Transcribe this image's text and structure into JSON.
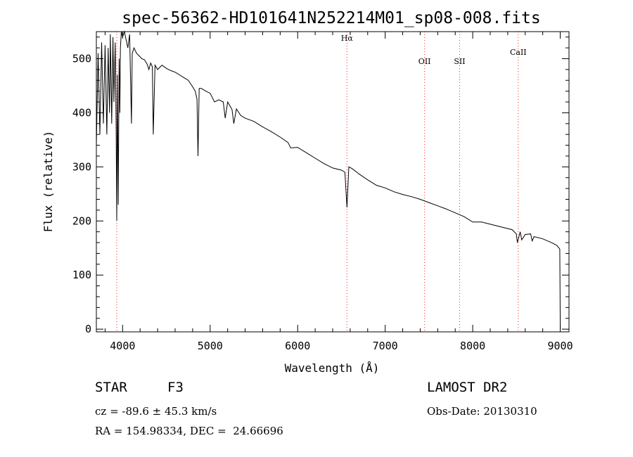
{
  "chart_data": {
    "type": "line",
    "title": "spec-56362-HD101641N252214M01_sp08-008.fits",
    "xlabel": "Wavelength (Å)",
    "ylabel": "Flux (relative)",
    "xlim": [
      3700,
      9100
    ],
    "ylim": [
      -5,
      550
    ],
    "xticks": [
      4000,
      5000,
      6000,
      7000,
      8000,
      9000
    ],
    "yticks": [
      0,
      100,
      200,
      300,
      400,
      500
    ],
    "grid": false,
    "series": [
      {
        "color": "#000000",
        "x": [
          3700,
          3720,
          3740,
          3760,
          3780,
          3800,
          3820,
          3835,
          3850,
          3860,
          3875,
          3890,
          3900,
          3915,
          3925,
          3933,
          3940,
          3950,
          3960,
          3968,
          3975,
          3985,
          4000,
          4020,
          4040,
          4060,
          4080,
          4101,
          4110,
          4130,
          4160,
          4190,
          4220,
          4250,
          4280,
          4300,
          4320,
          4340,
          4350,
          4370,
          4400,
          4450,
          4500,
          4550,
          4600,
          4650,
          4700,
          4750,
          4800,
          4830,
          4850,
          4861,
          4875,
          4900,
          4950,
          5000,
          5050,
          5100,
          5150,
          5172,
          5200,
          5250,
          5270,
          5300,
          5350,
          5400,
          5500,
          5600,
          5700,
          5800,
          5890,
          5920,
          6000,
          6100,
          6200,
          6300,
          6400,
          6500,
          6540,
          6563,
          6585,
          6620,
          6700,
          6800,
          6900,
          7000,
          7100,
          7200,
          7300,
          7400,
          7500,
          7600,
          7700,
          7800,
          7900,
          8000,
          8100,
          8200,
          8300,
          8400,
          8450,
          8498,
          8510,
          8542,
          8560,
          8600,
          8662,
          8680,
          8700,
          8800,
          8900,
          8960,
          8985,
          8995,
          9000,
          9002
        ],
        "values": [
          340,
          510,
          360,
          530,
          380,
          525,
          360,
          520,
          400,
          545,
          380,
          540,
          420,
          530,
          390,
          200,
          470,
          230,
          500,
          400,
          520,
          560,
          540,
          550,
          535,
          520,
          545,
          380,
          510,
          520,
          510,
          505,
          500,
          498,
          490,
          480,
          492,
          485,
          360,
          488,
          480,
          488,
          482,
          478,
          475,
          470,
          465,
          460,
          448,
          440,
          425,
          320,
          445,
          445,
          440,
          436,
          420,
          424,
          420,
          390,
          420,
          406,
          380,
          407,
          395,
          390,
          384,
          374,
          365,
          355,
          345,
          335,
          336,
          326,
          316,
          306,
          298,
          294,
          290,
          225,
          300,
          297,
          287,
          276,
          266,
          261,
          254,
          249,
          245,
          240,
          234,
          228,
          222,
          215,
          208,
          198,
          198,
          194,
          190,
          186,
          184,
          176,
          160,
          180,
          165,
          175,
          176,
          163,
          171,
          167,
          160,
          155,
          150,
          148,
          0,
          0
        ]
      }
    ],
    "annotations": [
      {
        "label": "Hα",
        "x": 6563,
        "label_y": 533
      },
      {
        "label": "OII",
        "x": 7450,
        "label_y": 490
      },
      {
        "label": "SII",
        "x": 7850,
        "label_y": 490
      },
      {
        "label": "CaII",
        "x": 8520,
        "label_y": 507
      },
      {
        "label": "",
        "x": 3933,
        "label_y": 0
      }
    ],
    "info": {
      "class_label": "STAR",
      "subclass": "F3",
      "cz": "cz = -89.6 ± 45.3 km/s",
      "coords": "RA = 154.98334, DEC =  24.66696",
      "survey": "LAMOST DR2",
      "obs_date": "Obs-Date: 20130310"
    }
  }
}
